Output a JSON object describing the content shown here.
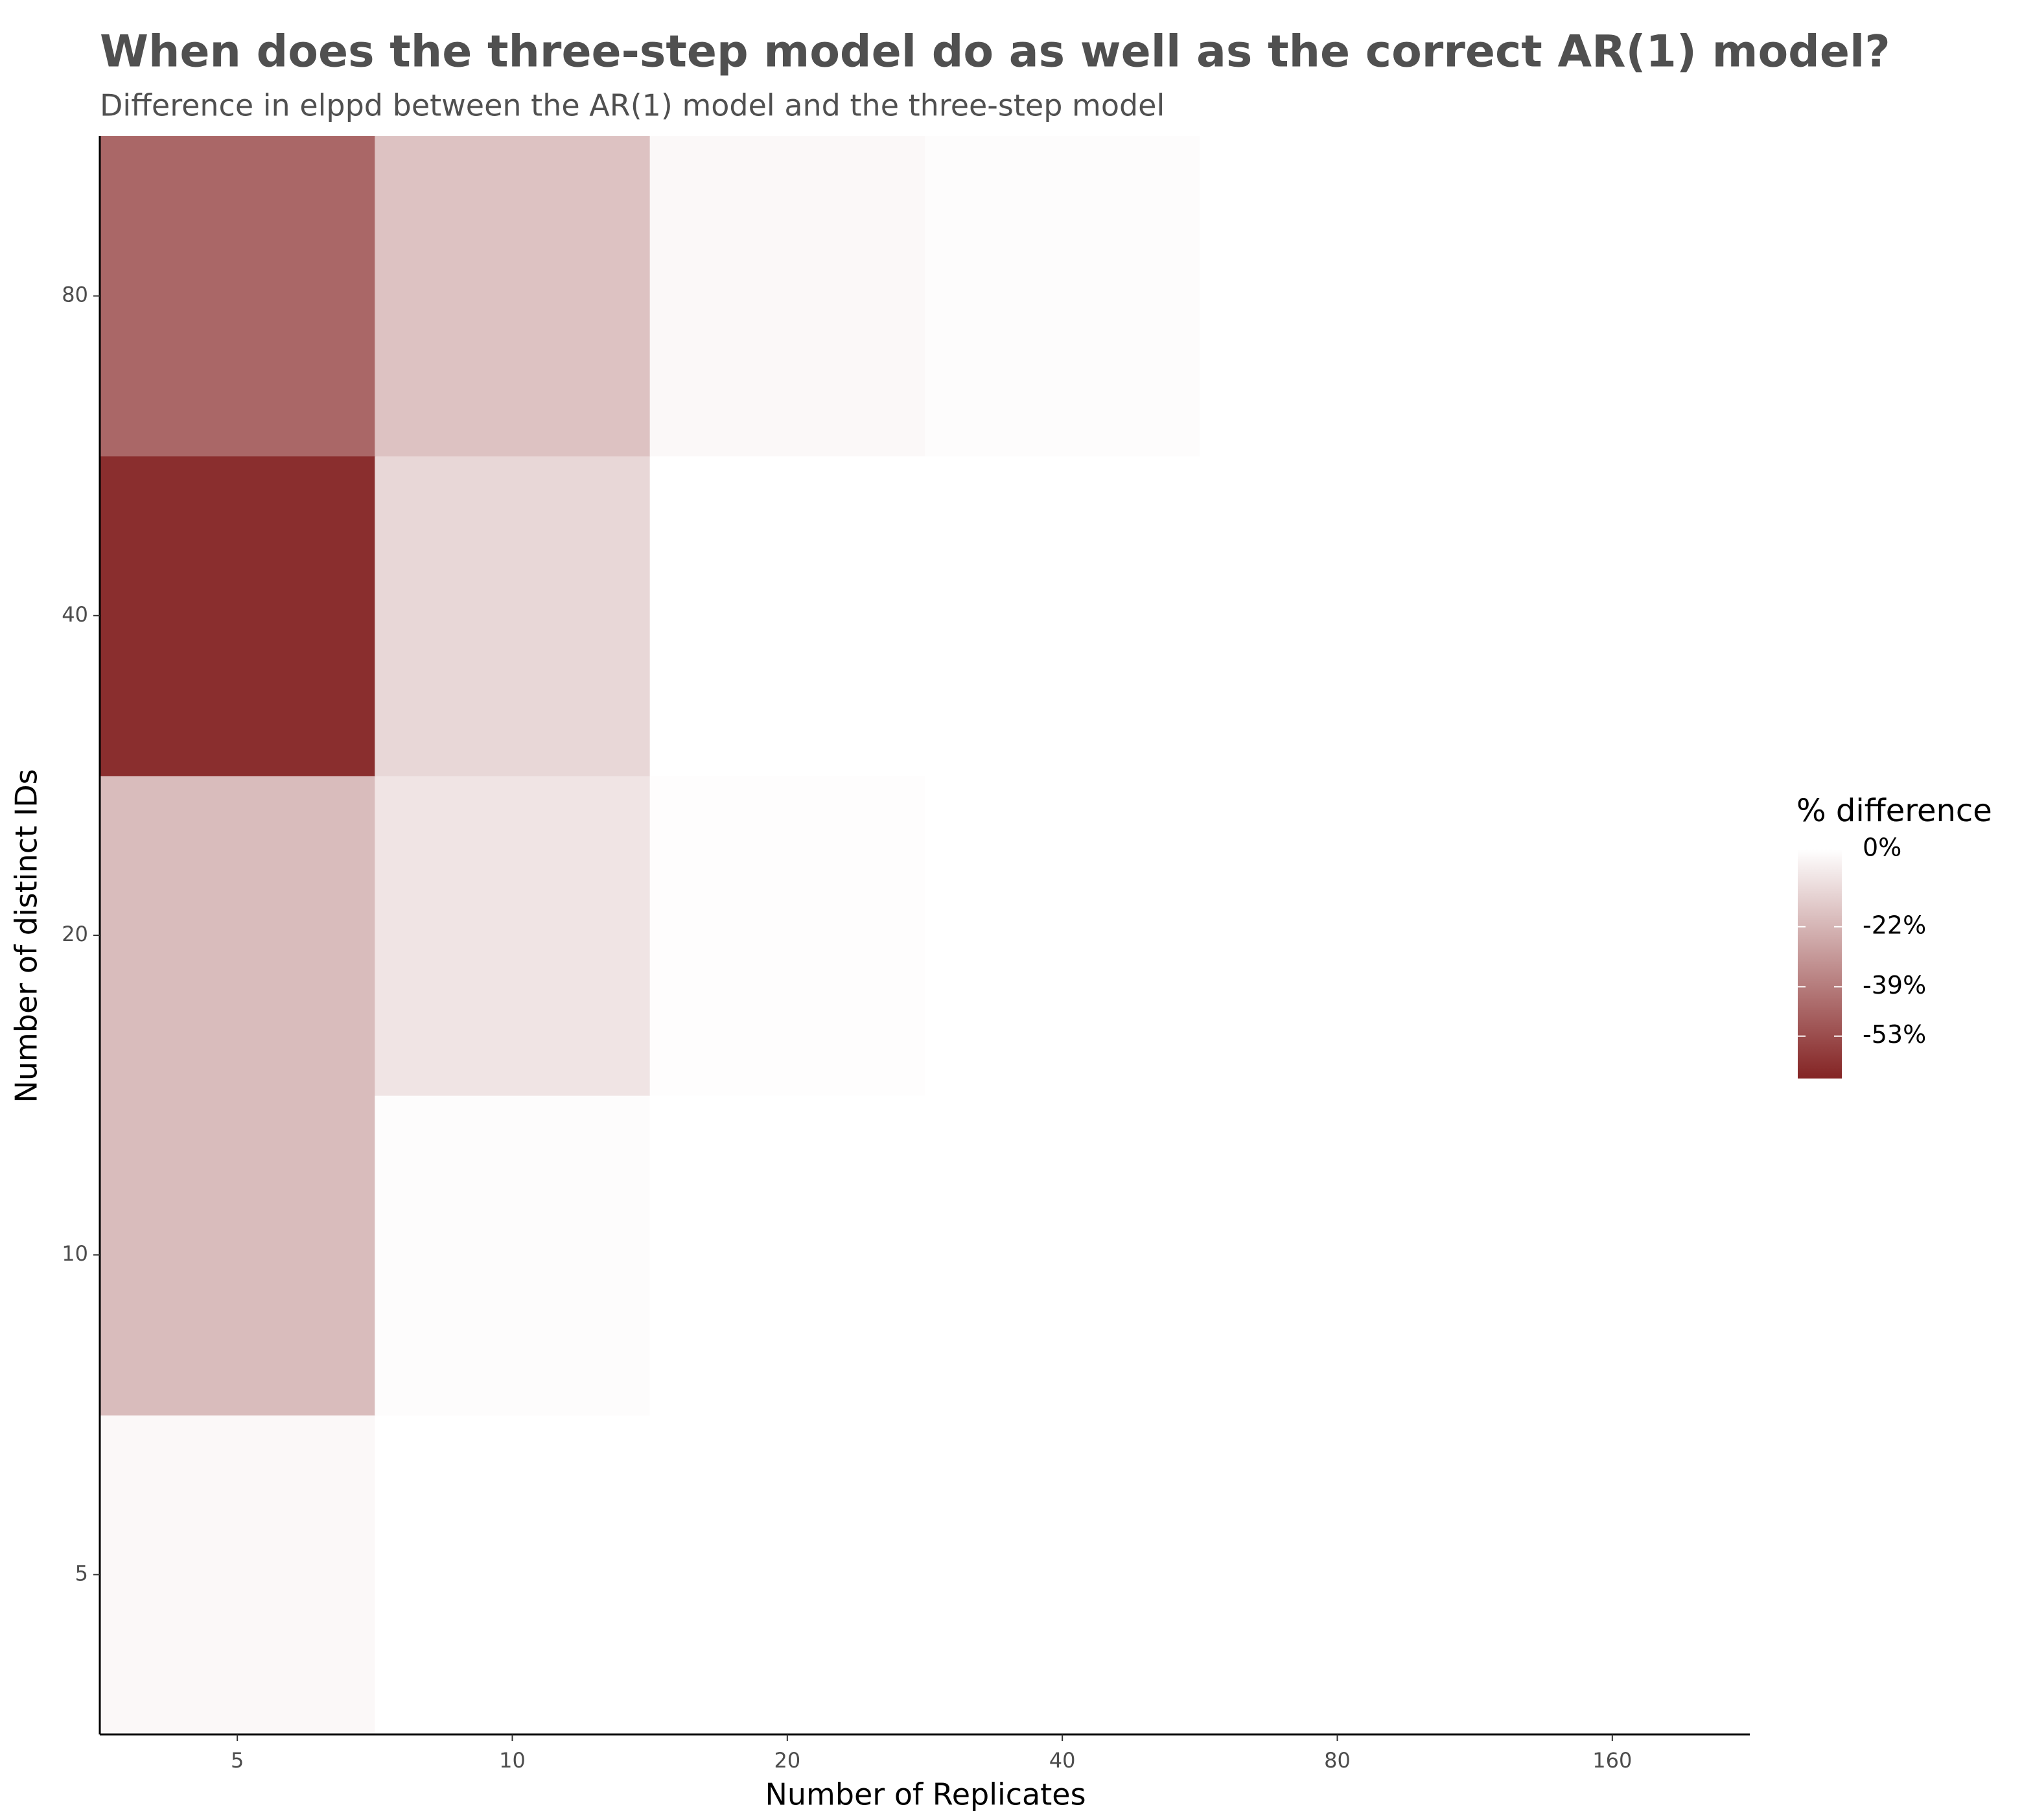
{
  "chart_data": {
    "type": "heatmap",
    "title": "When does the three-step model do as well as the correct AR(1) model?",
    "subtitle": "Difference in elppd between the AR(1) model and the three-step model",
    "x_label": "Number of Replicates",
    "y_label": "Number of distinct IDs",
    "x_categories": [
      "5",
      "10",
      "20",
      "40",
      "80",
      "160"
    ],
    "y_categories": [
      "5",
      "10",
      "20",
      "40",
      "80"
    ],
    "values": [
      [
        -2,
        0,
        0,
        0,
        0,
        0
      ],
      [
        -20,
        -1,
        0,
        0,
        0,
        0
      ],
      [
        -20,
        -8,
        -0.5,
        0,
        0,
        0
      ],
      [
        -62,
        -12,
        0,
        0,
        0,
        0
      ],
      [
        -45,
        -18,
        -2,
        -1,
        0,
        0
      ]
    ],
    "legend_title": "% difference",
    "clim": [
      -65,
      0
    ],
    "colors": [
      "#842424",
      "#ffffff"
    ],
    "cticks": [
      {
        "value": 0,
        "label": "0%"
      },
      {
        "value": -22,
        "label": "-22%"
      },
      {
        "value": -39,
        "label": "-39%"
      },
      {
        "value": -53,
        "label": "-53%"
      }
    ]
  }
}
